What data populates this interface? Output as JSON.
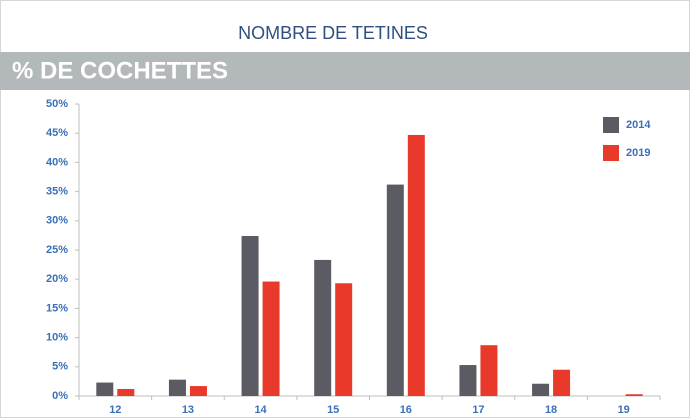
{
  "chart_data": {
    "type": "bar",
    "title": "NOMBRE DE TETINES",
    "subtitle": "% DE COCHETTES",
    "categories": [
      "12",
      "13",
      "14",
      "15",
      "16",
      "17",
      "18",
      "19"
    ],
    "series": [
      {
        "name": "2014",
        "color": "#5b5b63",
        "values": [
          2.3,
          2.8,
          27.4,
          23.3,
          36.2,
          5.3,
          2.1,
          0
        ]
      },
      {
        "name": "2019",
        "color": "#e8392b",
        "values": [
          1.2,
          1.7,
          19.6,
          19.3,
          44.7,
          8.7,
          4.5,
          0.3
        ]
      }
    ],
    "ylim": [
      0,
      50
    ],
    "yticks": [
      {
        "value": 0,
        "label": "0%"
      },
      {
        "value": 5,
        "label": "5%"
      },
      {
        "value": 10,
        "label": "10%"
      },
      {
        "value": 15,
        "label": "15%"
      },
      {
        "value": 20,
        "label": "20%"
      },
      {
        "value": 25,
        "label": "25%"
      },
      {
        "value": 30,
        "label": "30%"
      },
      {
        "value": 35,
        "label": "35%"
      },
      {
        "value": 40,
        "label": "40%"
      },
      {
        "value": 45,
        "label": "45%"
      },
      {
        "value": 50,
        "label": "50%"
      }
    ],
    "grid": false,
    "legend": "top-right"
  }
}
